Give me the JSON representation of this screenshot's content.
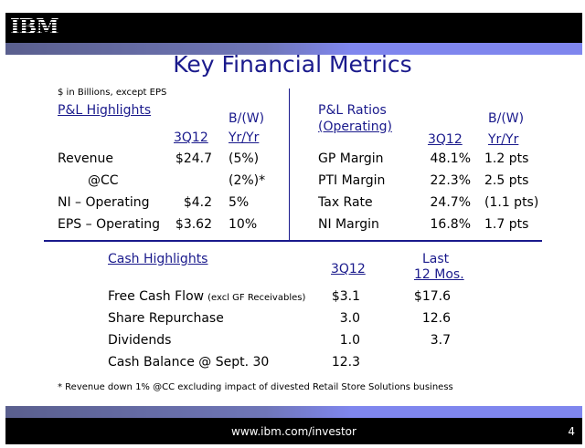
{
  "header": {
    "logo": "IBM"
  },
  "title": "Key Financial Metrics",
  "units_note": "$ in Billions, except EPS",
  "pl": {
    "heading": "P&L Highlights",
    "col_period": "3Q12",
    "col_bw1": "B/(W)",
    "col_bw2": "Yr/Yr",
    "rows": [
      {
        "label": "Revenue",
        "value": "$24.7",
        "bw": "(5%)"
      },
      {
        "label": "@CC",
        "value": "",
        "bw": "(2%)*"
      },
      {
        "label": "NI – Operating",
        "value": "$4.2",
        "bw": "5%"
      },
      {
        "label": "EPS – Operating",
        "value": "$3.62",
        "bw": "10%"
      }
    ]
  },
  "ratios": {
    "heading1": "P&L Ratios",
    "heading2": "(Operating)",
    "col_period": "3Q12",
    "col_bw1": "B/(W)",
    "col_bw2": "Yr/Yr",
    "rows": [
      {
        "label": "GP Margin",
        "value": "48.1%",
        "bw": "1.2 pts"
      },
      {
        "label": "PTI Margin",
        "value": "22.3%",
        "bw": "2.5 pts"
      },
      {
        "label": "Tax Rate",
        "value": "24.7%",
        "bw": "(1.1 pts)"
      },
      {
        "label": "NI Margin",
        "value": "16.8%",
        "bw": "1.7 pts"
      }
    ]
  },
  "cash": {
    "heading": "Cash Highlights",
    "col_period": "3Q12",
    "col_last1": "Last",
    "col_last2": "12 Mos.",
    "rows": [
      {
        "label": "Free Cash Flow",
        "note": "(excl GF Receivables)",
        "value": "$3.1",
        "last": "$17.6"
      },
      {
        "label": "Share Repurchase",
        "note": "",
        "value": "3.0",
        "last": "12.6"
      },
      {
        "label": "Dividends",
        "note": "",
        "value": "1.0",
        "last": "3.7"
      },
      {
        "label": "Cash Balance @ Sept. 30",
        "note": "",
        "value": "12.3",
        "last": ""
      }
    ]
  },
  "footnote": "* Revenue down 1% @CC excluding impact of divested Retail Store Solutions business",
  "footer": {
    "url": "www.ibm.com/investor",
    "page": "4"
  }
}
